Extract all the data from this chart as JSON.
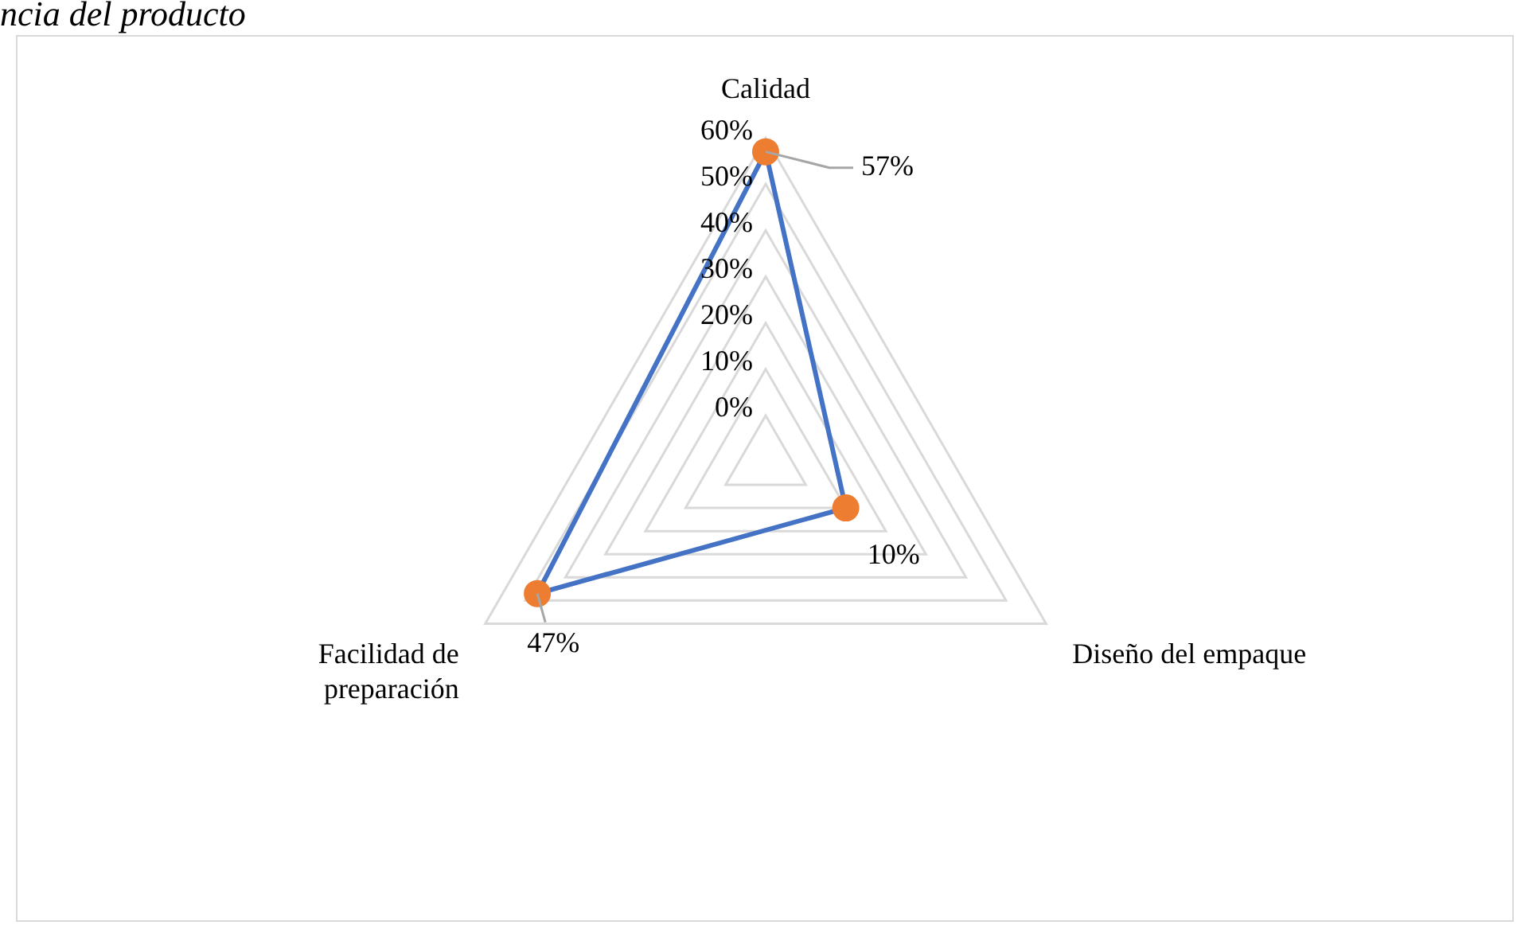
{
  "chart_data": {
    "type": "radar",
    "title": "ncia del producto",
    "categories": [
      "Calidad",
      "Diseño del empaque",
      "Facilidad de preparación"
    ],
    "series": [
      {
        "color": "#4472c4",
        "colors": [
          "#ed7d31",
          "#ed7d31",
          "#ed7d31"
        ],
        "values": [
          57,
          10,
          47
        ],
        "value_labels": [
          "57%",
          "10%",
          "47%"
        ]
      }
    ],
    "ylim": [
      -10,
      60
    ],
    "yticks": [
      {
        "value": 0,
        "label": "0%"
      },
      {
        "value": 10,
        "label": "10%"
      },
      {
        "value": 20,
        "label": "20%"
      },
      {
        "value": 30,
        "label": "30%"
      },
      {
        "value": 40,
        "label": "40%"
      },
      {
        "value": 50,
        "label": "50%"
      },
      {
        "value": 60,
        "label": "60%"
      }
    ],
    "grid": true,
    "legend": false,
    "marker": "circle"
  }
}
